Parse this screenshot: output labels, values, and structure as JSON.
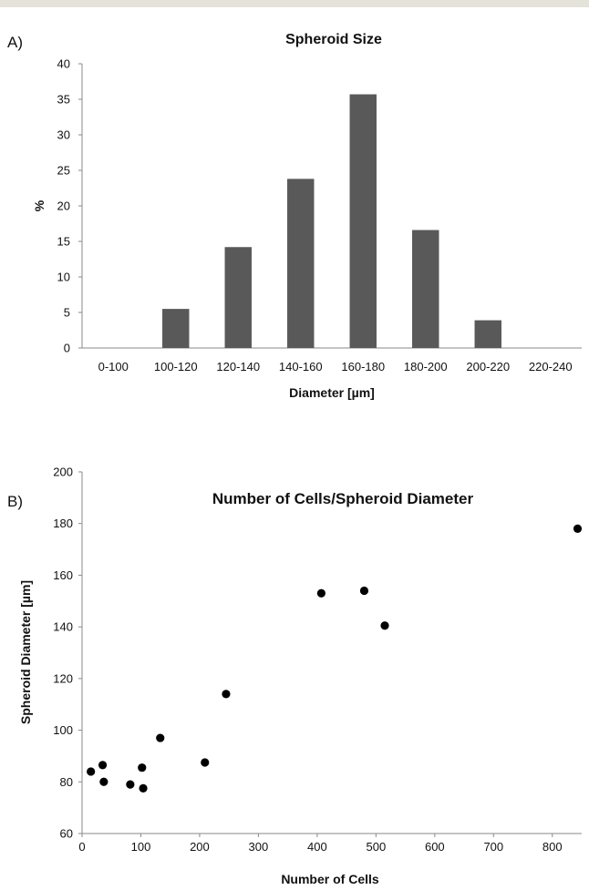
{
  "chart_data": [
    {
      "type": "bar",
      "panel_label": "A)",
      "title": "Spheroid Size",
      "xlabel": "Diameter [µm]",
      "ylabel": "%",
      "categories": [
        "0-100",
        "100-120",
        "120-140",
        "140-160",
        "160-180",
        "180-200",
        "200-220",
        "220-240"
      ],
      "values": [
        0,
        5.5,
        14.2,
        23.8,
        35.7,
        16.6,
        3.9,
        0
      ],
      "ylim": [
        0,
        40
      ],
      "yticks": [
        0,
        5,
        10,
        15,
        20,
        25,
        30,
        35,
        40
      ],
      "grid": false,
      "legend": "none",
      "bar_color": "#595959"
    },
    {
      "type": "scatter",
      "panel_label": "B)",
      "title": "Number of Cells/Spheroid Diameter",
      "xlabel": "Number of Cells",
      "ylabel": "Spheroid Diameter [µm]",
      "xlim": [
        0,
        850
      ],
      "ylim": [
        60,
        200
      ],
      "xticks": [
        0,
        100,
        200,
        300,
        400,
        500,
        600,
        700,
        800
      ],
      "yticks": [
        60,
        80,
        100,
        120,
        140,
        160,
        180,
        200
      ],
      "grid": false,
      "legend": "none",
      "marker_color": "#000000",
      "points": [
        {
          "x": 15,
          "y": 84
        },
        {
          "x": 35,
          "y": 86.5
        },
        {
          "x": 37,
          "y": 80
        },
        {
          "x": 82,
          "y": 79
        },
        {
          "x": 102,
          "y": 85.5
        },
        {
          "x": 104,
          "y": 77.5
        },
        {
          "x": 133,
          "y": 97
        },
        {
          "x": 209,
          "y": 87.5
        },
        {
          "x": 245,
          "y": 114
        },
        {
          "x": 407,
          "y": 153
        },
        {
          "x": 480,
          "y": 154
        },
        {
          "x": 515,
          "y": 140.5
        },
        {
          "x": 843,
          "y": 178
        }
      ]
    }
  ]
}
